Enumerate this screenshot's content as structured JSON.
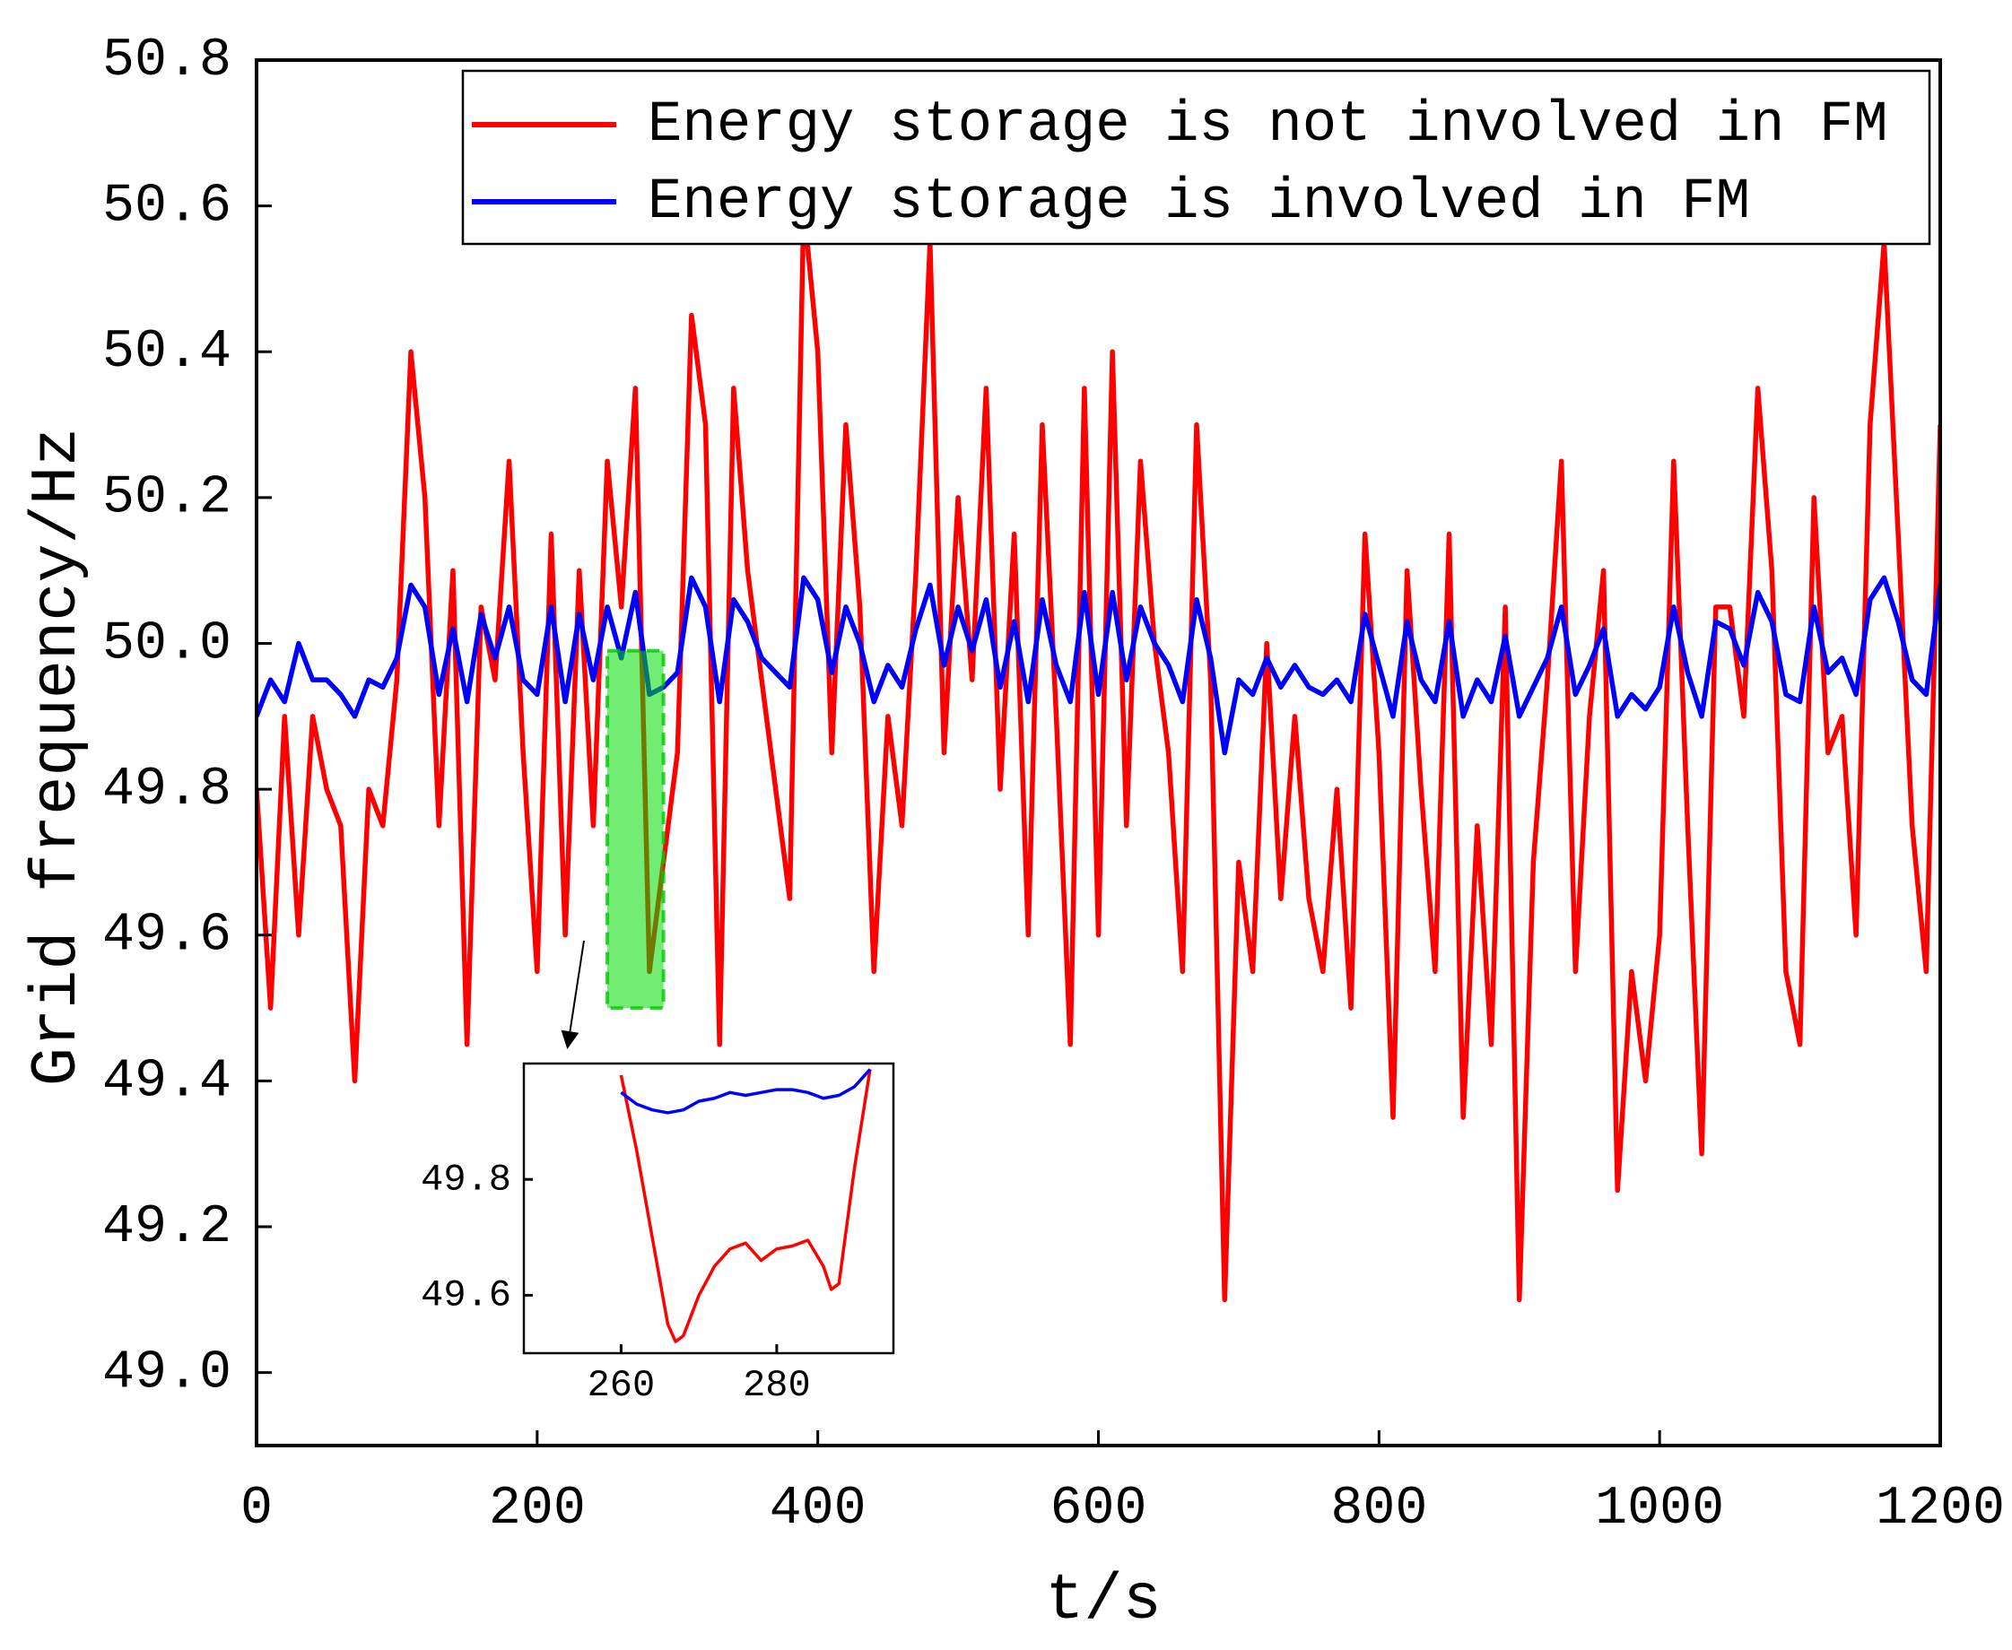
{
  "chart_data": [
    {
      "type": "line",
      "xlabel": "t/s",
      "ylabel": "Grid frequency/Hz",
      "xlim": [
        0,
        1200
      ],
      "ylim": [
        48.9,
        50.8
      ],
      "xticks": [
        0,
        200,
        400,
        600,
        800,
        1000,
        1200
      ],
      "yticks": [
        {
          "value": 49,
          "label": "49.0"
        },
        49.2,
        49.4,
        49.6,
        49.8,
        {
          "value": 50,
          "label": "50.0"
        },
        50.2,
        50.4,
        50.6,
        50.8
      ],
      "legend": "upper right",
      "x": [
        0,
        10,
        20,
        30,
        40,
        50,
        60,
        70,
        80,
        90,
        100,
        110,
        120,
        130,
        140,
        150,
        160,
        170,
        180,
        190,
        200,
        210,
        220,
        230,
        240,
        250,
        260,
        270,
        280,
        290,
        300,
        310,
        320,
        330,
        340,
        350,
        360,
        370,
        380,
        390,
        400,
        410,
        420,
        430,
        440,
        450,
        460,
        470,
        480,
        490,
        500,
        510,
        520,
        530,
        540,
        550,
        560,
        570,
        580,
        590,
        600,
        610,
        620,
        630,
        640,
        650,
        660,
        670,
        680,
        690,
        700,
        710,
        720,
        730,
        740,
        750,
        760,
        770,
        780,
        790,
        800,
        810,
        820,
        830,
        840,
        850,
        860,
        870,
        880,
        890,
        900,
        910,
        920,
        930,
        940,
        950,
        960,
        970,
        980,
        990,
        1000,
        1010,
        1020,
        1030,
        1040,
        1050,
        1060,
        1070,
        1080,
        1090,
        1100,
        1110,
        1120,
        1130,
        1140,
        1150,
        1160,
        1170,
        1180,
        1190,
        1200
      ],
      "series": [
        {
          "name": "Energy storage is not involved in FM",
          "color": "#ff0000",
          "values": [
            49.8,
            49.5,
            49.9,
            49.6,
            49.9,
            49.8,
            49.75,
            49.4,
            49.8,
            49.75,
            49.95,
            50.4,
            50.2,
            49.75,
            50.1,
            49.45,
            50.05,
            49.95,
            50.25,
            49.85,
            49.55,
            50.15,
            49.6,
            50.1,
            49.75,
            50.25,
            50.05,
            50.35,
            49.55,
            49.7,
            49.85,
            50.45,
            50.3,
            49.45,
            50.35,
            50.1,
            49.95,
            49.8,
            49.65,
            50.6,
            50.4,
            49.85,
            50.3,
            50.05,
            49.55,
            49.9,
            49.75,
            50.1,
            50.55,
            49.85,
            50.2,
            49.95,
            50.35,
            49.8,
            50.15,
            49.6,
            50.3,
            49.9,
            49.45,
            50.35,
            49.6,
            50.4,
            49.75,
            50.25,
            50.0,
            49.85,
            49.55,
            50.3,
            49.95,
            49.1,
            49.7,
            49.55,
            50.0,
            49.65,
            49.9,
            49.65,
            49.55,
            49.8,
            49.5,
            50.15,
            49.85,
            49.35,
            50.1,
            49.8,
            49.55,
            50.15,
            49.35,
            49.75,
            49.45,
            50.05,
            49.1,
            49.7,
            49.95,
            50.25,
            49.55,
            49.9,
            50.1,
            49.25,
            49.55,
            49.4,
            49.6,
            50.25,
            49.75,
            49.3,
            50.05,
            50.05,
            49.9,
            50.35,
            50.1,
            49.55,
            49.45,
            50.2,
            49.85,
            49.9,
            49.6,
            50.3,
            50.55,
            50.15,
            49.75,
            49.55,
            50.3
          ]
        },
        {
          "name": "Energy storage is involved in FM",
          "color": "#0000ff",
          "values": [
            49.9,
            49.95,
            49.92,
            50.0,
            49.95,
            49.95,
            49.93,
            49.9,
            49.95,
            49.94,
            49.98,
            50.08,
            50.05,
            49.93,
            50.02,
            49.92,
            50.04,
            49.98,
            50.05,
            49.95,
            49.93,
            50.05,
            49.92,
            50.04,
            49.95,
            50.05,
            49.98,
            50.07,
            49.93,
            49.94,
            49.96,
            50.09,
            50.05,
            49.92,
            50.06,
            50.03,
            49.98,
            49.96,
            49.94,
            50.09,
            50.06,
            49.96,
            50.05,
            50.0,
            49.92,
            49.97,
            49.94,
            50.02,
            50.08,
            49.97,
            50.05,
            49.99,
            50.06,
            49.94,
            50.03,
            49.92,
            50.06,
            49.97,
            49.92,
            50.07,
            49.93,
            50.07,
            49.95,
            50.05,
            50.0,
            49.97,
            49.92,
            50.06,
            49.98,
            49.85,
            49.95,
            49.93,
            49.98,
            49.94,
            49.97,
            49.94,
            49.93,
            49.95,
            49.92,
            50.04,
            49.97,
            49.9,
            50.03,
            49.95,
            49.92,
            50.03,
            49.9,
            49.95,
            49.92,
            50.01,
            49.9,
            49.94,
            49.98,
            50.05,
            49.93,
            49.97,
            50.02,
            49.9,
            49.93,
            49.91,
            49.94,
            50.05,
            49.96,
            49.9,
            50.03,
            50.02,
            49.97,
            50.07,
            50.03,
            49.93,
            49.92,
            50.05,
            49.96,
            49.98,
            49.93,
            50.06,
            50.09,
            50.03,
            49.95,
            49.93,
            50.08
          ]
        }
      ]
    },
    {
      "type": "inset",
      "xlim": [
        247.5,
        295
      ],
      "ylim": [
        49.5,
        50.0
      ],
      "xticks": [
        260,
        280
      ],
      "yticks": [
        49.6,
        49.8
      ],
      "highlight_x": [
        250,
        290
      ],
      "highlight_y": [
        49.5,
        49.99
      ],
      "series": [
        {
          "color": "#ff0000",
          "x": [
            260,
            262,
            264,
            266,
            267,
            268,
            270,
            272,
            274,
            276,
            278,
            280,
            282,
            284,
            286,
            287,
            288,
            290,
            292
          ],
          "values": [
            49.98,
            49.85,
            49.7,
            49.55,
            49.52,
            49.53,
            49.6,
            49.65,
            49.68,
            49.69,
            49.66,
            49.68,
            49.685,
            49.695,
            49.65,
            49.61,
            49.62,
            49.82,
            49.99
          ]
        },
        {
          "color": "#0000ff",
          "x": [
            260,
            262,
            264,
            266,
            268,
            270,
            272,
            274,
            276,
            278,
            280,
            282,
            284,
            286,
            288,
            290,
            292
          ],
          "values": [
            49.95,
            49.93,
            49.92,
            49.915,
            49.92,
            49.935,
            49.94,
            49.95,
            49.945,
            49.95,
            49.955,
            49.955,
            49.95,
            49.94,
            49.945,
            49.96,
            49.99
          ]
        }
      ]
    }
  ]
}
